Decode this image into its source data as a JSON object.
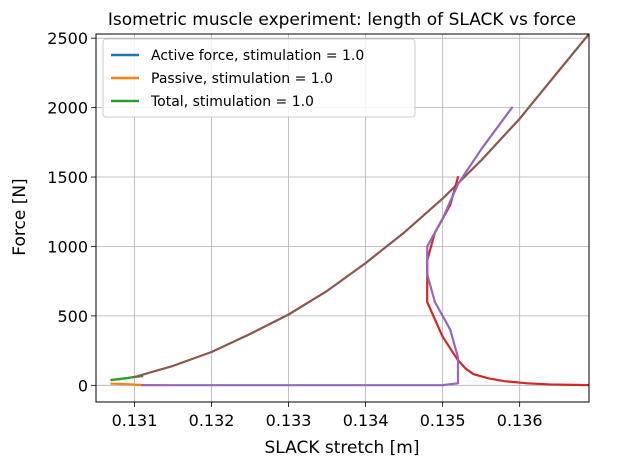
{
  "chart_data": {
    "type": "line",
    "title": "Isometric muscle experiment: length of SLACK vs force",
    "xlabel": "SLACK stretch [m]",
    "ylabel": "Force [N]",
    "xlim": [
      0.1305,
      0.1369
    ],
    "ylim": [
      -120,
      2530
    ],
    "xticks": [
      0.131,
      0.132,
      0.133,
      0.134,
      0.135,
      0.136
    ],
    "xtick_labels": [
      "0.131",
      "0.132",
      "0.133",
      "0.134",
      "0.135",
      "0.136"
    ],
    "yticks": [
      0,
      500,
      1000,
      1500,
      2000,
      2500
    ],
    "ytick_labels": [
      "0",
      "500",
      "1000",
      "1500",
      "2000",
      "2500"
    ],
    "grid": true,
    "legend_position": "top-left",
    "legend": [
      {
        "label": "Active force, stimulation = 1.0",
        "color": "#1f77b4"
      },
      {
        "label": "Passive, stimulation = 1.0",
        "color": "#ff7f0e"
      },
      {
        "label": "Total, stimulation = 1.0",
        "color": "#2ca02c"
      }
    ],
    "series": [
      {
        "name": "Active force, stimulation = 1.0",
        "color": "#1f77b4",
        "x": [
          0.1307,
          0.1308,
          0.1309,
          0.131
        ],
        "y": [
          40,
          45,
          52,
          60
        ]
      },
      {
        "name": "Passive, stimulation = 1.0",
        "color": "#ff7f0e",
        "x": [
          0.1307,
          0.1308,
          0.1309,
          0.131,
          0.1311
        ],
        "y": [
          12,
          10,
          8,
          5,
          2
        ]
      },
      {
        "name": "Total, stimulation = 1.0",
        "color": "#2ca02c",
        "x": [
          0.1307,
          0.1308,
          0.1309,
          0.131,
          0.1311
        ],
        "y": [
          38,
          45,
          52,
          60,
          66
        ]
      },
      {
        "color": "#8c564b",
        "x": [
          0.131,
          0.1315,
          0.132,
          0.1325,
          0.133,
          0.1335,
          0.134,
          0.1345,
          0.135,
          0.1355,
          0.136,
          0.1365,
          0.1369
        ],
        "y": [
          60,
          140,
          240,
          370,
          510,
          680,
          880,
          1100,
          1345,
          1620,
          1920,
          2260,
          2530
        ]
      },
      {
        "color": "#d62728",
        "x": [
          0.1352,
          0.1351,
          0.1349,
          0.1348,
          0.1348,
          0.135,
          0.1352,
          0.1353,
          0.1354,
          0.1356,
          0.1358,
          0.1361,
          0.1364,
          0.1369
        ],
        "y": [
          1500,
          1300,
          1100,
          900,
          600,
          350,
          180,
          120,
          80,
          50,
          30,
          15,
          6,
          2
        ]
      },
      {
        "color": "#9467bd",
        "x": [
          0.1311,
          0.1315,
          0.132,
          0.1325,
          0.133,
          0.1335,
          0.134,
          0.1345,
          0.135,
          0.1352,
          0.1352,
          0.1351,
          0.1349,
          0.1348,
          0.1348,
          0.135,
          0.1352,
          0.1355,
          0.1359
        ],
        "y": [
          2,
          1,
          1,
          1,
          1,
          1,
          1,
          1,
          2,
          15,
          200,
          400,
          600,
          800,
          1000,
          1200,
          1450,
          1700,
          2000
        ]
      }
    ]
  }
}
